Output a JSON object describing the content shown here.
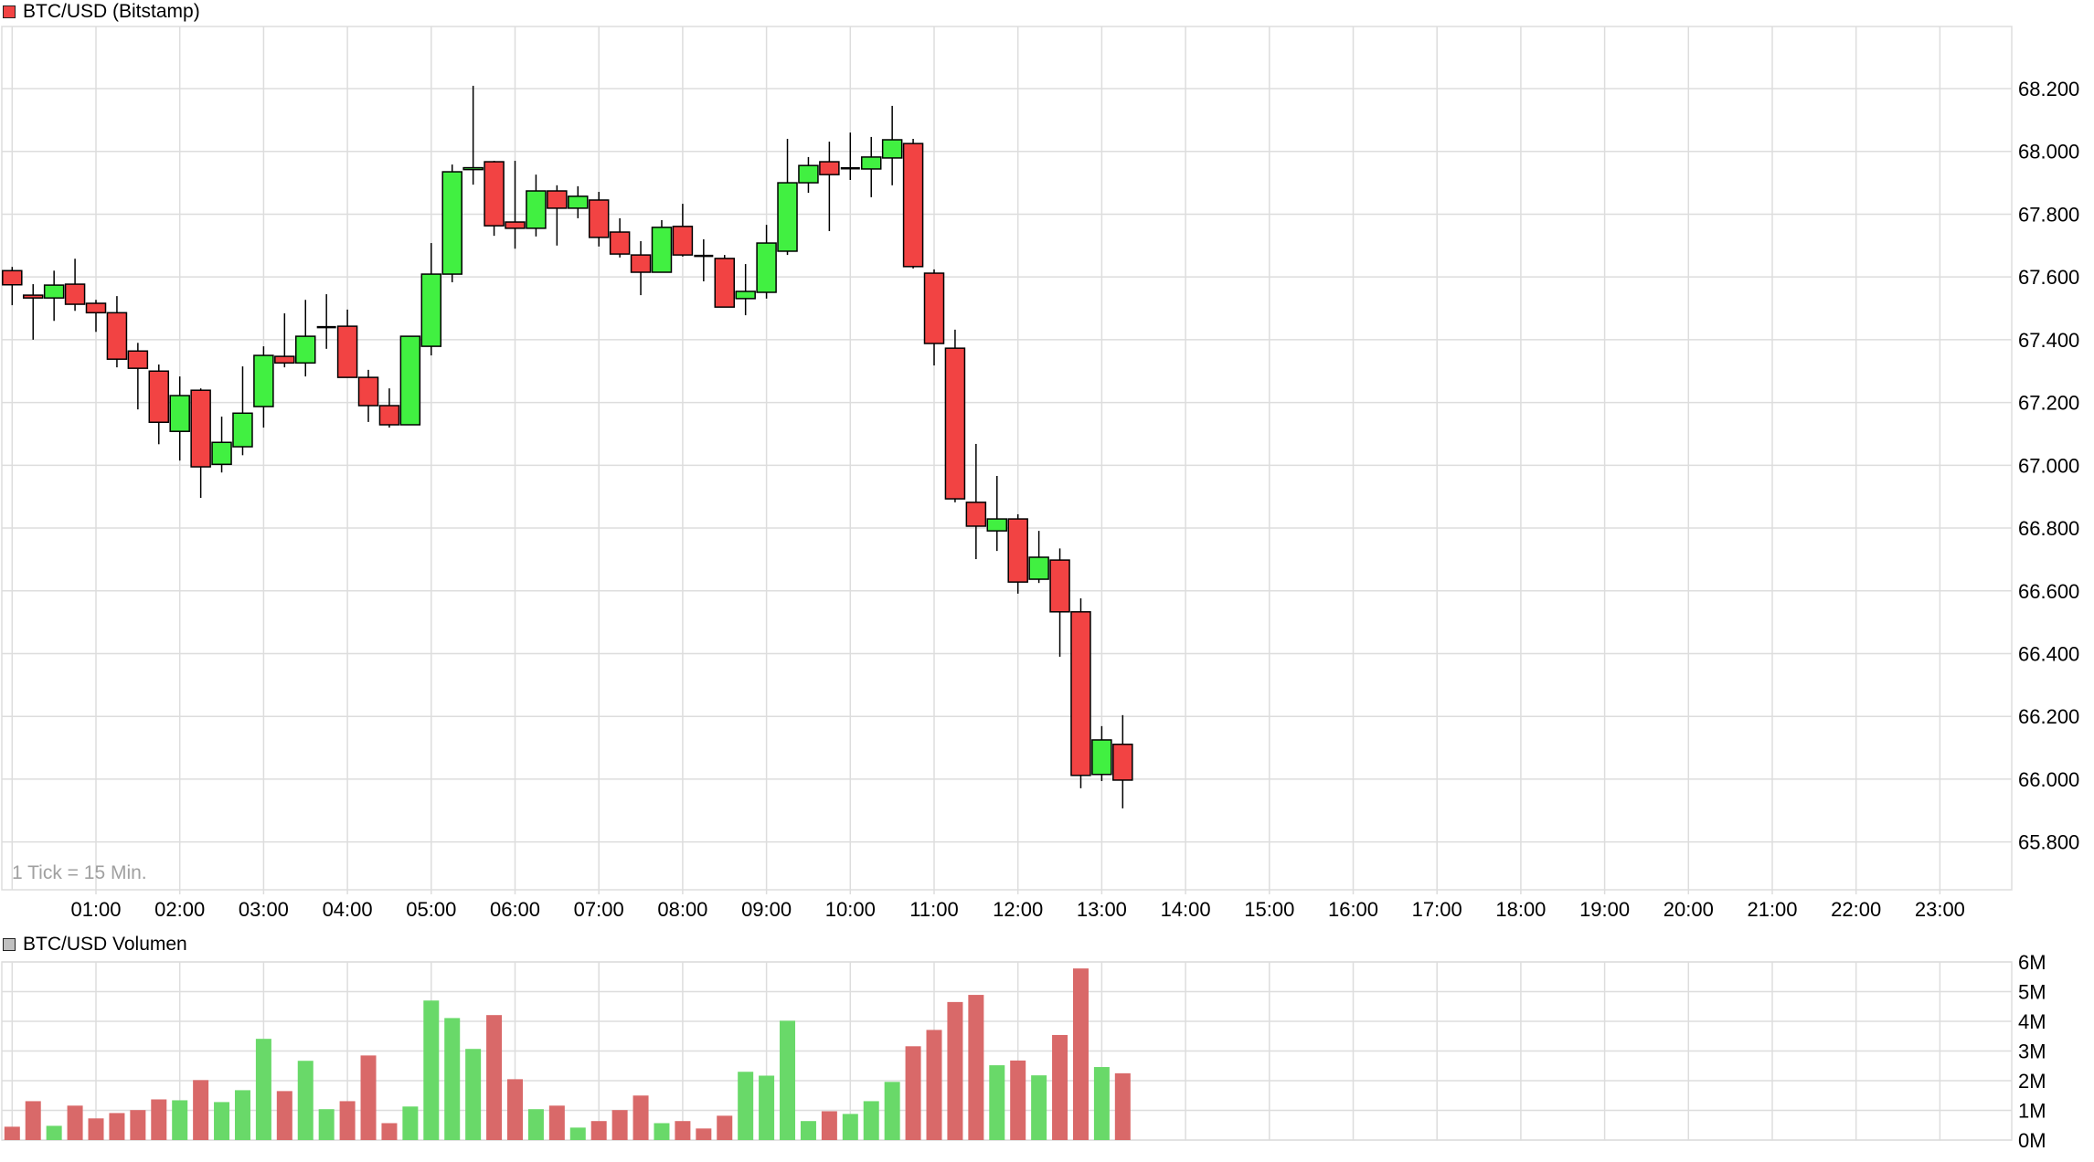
{
  "price_panel": {
    "title": "BTC/USD (Bitstamp)",
    "legend_color": "#F24343",
    "tick_note": "1 Tick = 15 Min."
  },
  "volume_panel": {
    "title": "BTC/USD Volumen",
    "legend_color": "#C0C0C0"
  },
  "colors": {
    "up_body": "#41F041",
    "down_body": "#F24343",
    "up_volume": "#69D969",
    "down_volume": "#D96969",
    "grid": "#DDDDDD",
    "outline": "#000000"
  },
  "chart_data": [
    {
      "type": "candlestick",
      "title": "BTC/USD (Bitstamp)",
      "xlabel": "",
      "ylabel": "",
      "interval": "15 min",
      "x_tick_labels": [
        "01:00",
        "02:00",
        "03:00",
        "04:00",
        "05:00",
        "06:00",
        "07:00",
        "08:00",
        "09:00",
        "10:00",
        "11:00",
        "12:00",
        "13:00",
        "14:00",
        "15:00",
        "16:00",
        "17:00",
        "18:00",
        "19:00",
        "20:00",
        "21:00",
        "22:00",
        "23:00"
      ],
      "y_tick_labels": [
        "68.200",
        "68.000",
        "67.800",
        "67.600",
        "67.400",
        "67.200",
        "67.000",
        "66.800",
        "66.600",
        "66.400",
        "66.200",
        "66.000",
        "65.800"
      ],
      "y_ticks": [
        68200,
        68000,
        67800,
        67600,
        67400,
        67200,
        67000,
        66800,
        66600,
        66400,
        66200,
        66000,
        65800
      ],
      "ylim": [
        65690,
        68400
      ],
      "grid": true,
      "columns": [
        "time",
        "open",
        "high",
        "low",
        "close"
      ],
      "candles": [
        [
          "00:00",
          67620,
          67632,
          67510,
          67575
        ],
        [
          "00:15",
          67542,
          67577,
          67400,
          67533
        ],
        [
          "00:30",
          67533,
          67620,
          67460,
          67574
        ],
        [
          "00:45",
          67577,
          67658,
          67492,
          67513
        ],
        [
          "01:00",
          67516,
          67527,
          67425,
          67486
        ],
        [
          "01:15",
          67486,
          67539,
          67312,
          67338
        ],
        [
          "01:30",
          67364,
          67390,
          67178,
          67309
        ],
        [
          "01:45",
          67300,
          67321,
          67067,
          67137
        ],
        [
          "02:00",
          67108,
          67283,
          67015,
          67222
        ],
        [
          "02:15",
          67239,
          67245,
          66896,
          66995
        ],
        [
          "02:30",
          67003,
          67155,
          66977,
          67073
        ],
        [
          "02:45",
          67059,
          67315,
          67032,
          67166
        ],
        [
          "03:00",
          67187,
          67379,
          67120,
          67350
        ],
        [
          "03:15",
          67347,
          67484,
          67312,
          67326
        ],
        [
          "03:30",
          67326,
          67527,
          67283,
          67411
        ],
        [
          "03:45",
          67440,
          67545,
          67371,
          67440
        ],
        [
          "04:00",
          67443,
          67496,
          67280,
          67280
        ],
        [
          "04:15",
          67280,
          67304,
          67138,
          67190
        ],
        [
          "04:30",
          67190,
          67245,
          67120,
          67129
        ],
        [
          "04:45",
          67129,
          67411,
          67129,
          67411
        ],
        [
          "05:00",
          67379,
          67708,
          67350,
          67609
        ],
        [
          "05:15",
          67609,
          67958,
          67583,
          67935
        ],
        [
          "05:30",
          67942,
          68209,
          67894,
          67948
        ],
        [
          "05:45",
          67967,
          67970,
          67731,
          67763
        ],
        [
          "06:00",
          67775,
          67970,
          67690,
          67755
        ],
        [
          "06:15",
          67755,
          67926,
          67729,
          67874
        ],
        [
          "06:30",
          67874,
          67892,
          67700,
          67819
        ],
        [
          "06:45",
          67819,
          67889,
          67787,
          67857
        ],
        [
          "07:00",
          67845,
          67871,
          67697,
          67726
        ],
        [
          "07:15",
          67743,
          67787,
          67662,
          67673
        ],
        [
          "07:30",
          67670,
          67714,
          67542,
          67615
        ],
        [
          "07:45",
          67615,
          67781,
          67615,
          67758
        ],
        [
          "08:00",
          67761,
          67833,
          67665,
          67670
        ],
        [
          "08:15",
          67667,
          67720,
          67586,
          67667
        ],
        [
          "08:30",
          67659,
          67670,
          67504,
          67504
        ],
        [
          "08:45",
          67531,
          67641,
          67478,
          67554
        ],
        [
          "09:00",
          67551,
          67766,
          67531,
          67708
        ],
        [
          "09:15",
          67682,
          68040,
          67670,
          67900
        ],
        [
          "09:30",
          67900,
          67982,
          67868,
          67955
        ],
        [
          "09:45",
          67967,
          68031,
          67746,
          67926
        ],
        [
          "10:00",
          67941,
          68060,
          67909,
          67946
        ],
        [
          "10:15",
          67944,
          68046,
          67854,
          67982
        ],
        [
          "10:30",
          67979,
          68145,
          67892,
          68037
        ],
        [
          "10:45",
          68025,
          68040,
          67627,
          67633
        ],
        [
          "11:00",
          67612,
          67624,
          67318,
          67388
        ],
        [
          "11:15",
          67373,
          67432,
          66882,
          66893
        ],
        [
          "11:30",
          66882,
          67068,
          66701,
          66806
        ],
        [
          "11:45",
          66791,
          66966,
          66727,
          66829
        ],
        [
          "12:00",
          66829,
          66844,
          66591,
          66628
        ],
        [
          "12:15",
          66637,
          66791,
          66625,
          66707
        ],
        [
          "12:30",
          66698,
          66735,
          66390,
          66533
        ],
        [
          "12:45",
          66533,
          66576,
          65971,
          66012
        ],
        [
          "13:00",
          66015,
          66169,
          65994,
          66125
        ],
        [
          "13:15",
          66111,
          66204,
          65907,
          65997
        ]
      ]
    },
    {
      "type": "bar",
      "title": "BTC/USD Volumen",
      "y_tick_labels": [
        "6M",
        "5M",
        "4M",
        "3M",
        "2M",
        "1M",
        "0M"
      ],
      "ylim": [
        0,
        6
      ],
      "unit": "M",
      "grid": true,
      "volumes": [
        0.45,
        1.31,
        0.48,
        1.16,
        0.73,
        0.91,
        1.01,
        1.37,
        1.34,
        2.02,
        1.28,
        1.68,
        3.41,
        1.65,
        2.67,
        1.04,
        1.31,
        2.85,
        0.57,
        1.13,
        4.7,
        4.11,
        3.07,
        4.21,
        2.05,
        1.04,
        1.16,
        0.42,
        0.64,
        1.01,
        1.5,
        0.57,
        0.64,
        0.39,
        0.82,
        2.3,
        2.17,
        4.02,
        0.64,
        0.97,
        0.88,
        1.31,
        1.96,
        3.16,
        3.71,
        4.65,
        4.89,
        2.52,
        2.68,
        2.18,
        3.54,
        5.78,
        2.46,
        2.25
      ],
      "volume_colors": [
        "down",
        "down",
        "up",
        "down",
        "down",
        "down",
        "down",
        "down",
        "up",
        "down",
        "up",
        "up",
        "up",
        "down",
        "up",
        "up",
        "down",
        "down",
        "down",
        "up",
        "up",
        "up",
        "up",
        "down",
        "down",
        "up",
        "down",
        "up",
        "down",
        "down",
        "down",
        "up",
        "down",
        "down",
        "down",
        "up",
        "up",
        "up",
        "up",
        "down",
        "up",
        "up",
        "up",
        "down",
        "down",
        "down",
        "down",
        "up",
        "down",
        "up",
        "down",
        "down",
        "up",
        "down"
      ]
    }
  ]
}
